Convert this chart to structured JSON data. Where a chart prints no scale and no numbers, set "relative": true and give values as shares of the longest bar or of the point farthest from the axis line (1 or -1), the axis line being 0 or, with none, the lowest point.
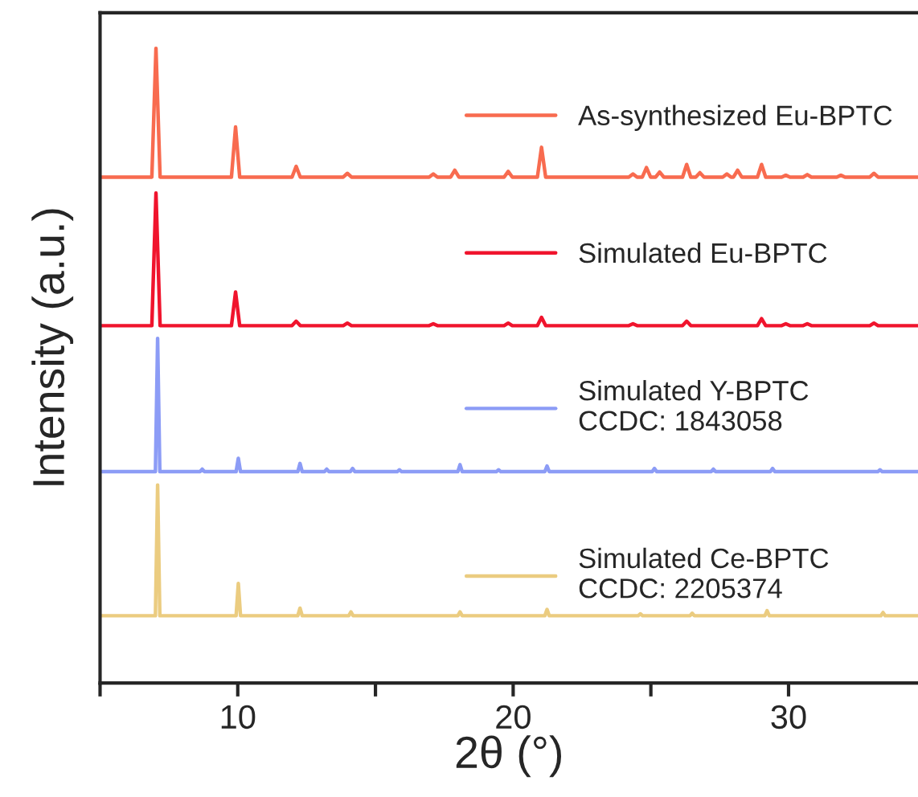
{
  "chart_data": {
    "type": "line",
    "relative": true,
    "xlabel": "2θ (°)",
    "ylabel": "Intensity (a.u.)",
    "xlim": [
      5,
      34.7
    ],
    "xticks": [
      {
        "value": 5,
        "label": null
      },
      10,
      {
        "value": 15,
        "label": null
      },
      20,
      {
        "value": 25,
        "label": null
      },
      30
    ],
    "legend": "right",
    "grid": false,
    "tick_labels": "x",
    "series": [
      {
        "name": "As-synthesized Eu-BPTC",
        "color": "#f86b4f",
        "x": [
          5,
          6.88,
          7.03,
          7.18,
          9.77,
          9.92,
          10.07,
          11.97,
          12.12,
          12.27,
          13.83,
          13.98,
          14.13,
          16.95,
          17.1,
          17.25,
          17.73,
          17.88,
          18.03,
          19.67,
          19.82,
          19.97,
          20.88,
          21.03,
          21.18,
          24.2,
          24.35,
          24.5,
          24.69,
          24.84,
          24.99,
          25.17,
          25.32,
          25.47,
          26.15,
          26.3,
          26.45,
          26.63,
          26.78,
          26.93,
          27.61,
          27.76,
          27.91,
          28.0,
          28.15,
          28.3,
          28.87,
          29.02,
          29.17,
          29.75,
          29.9,
          30.05,
          30.53,
          30.68,
          30.83,
          31.75,
          31.9,
          32.05,
          32.95,
          33.1,
          33.25,
          34.7
        ],
        "values": [
          0.797,
          0.797,
          1.0,
          0.797,
          0.797,
          0.876,
          0.797,
          0.797,
          0.814,
          0.797,
          0.797,
          0.803,
          0.797,
          0.797,
          0.802,
          0.797,
          0.797,
          0.808,
          0.797,
          0.797,
          0.806,
          0.797,
          0.797,
          0.844,
          0.797,
          0.797,
          0.802,
          0.797,
          0.797,
          0.812,
          0.797,
          0.797,
          0.805,
          0.797,
          0.797,
          0.817,
          0.797,
          0.797,
          0.804,
          0.797,
          0.797,
          0.802,
          0.797,
          0.797,
          0.808,
          0.797,
          0.797,
          0.817,
          0.797,
          0.797,
          0.8,
          0.797,
          0.797,
          0.801,
          0.797,
          0.797,
          0.8,
          0.797,
          0.797,
          0.803,
          0.797,
          0.797
        ]
      },
      {
        "name": "Simulated Eu-BPTC",
        "color": "#f0142d",
        "x": [
          5,
          6.88,
          7.03,
          7.18,
          9.77,
          9.92,
          10.07,
          11.97,
          12.12,
          12.27,
          13.83,
          13.98,
          14.13,
          16.95,
          17.1,
          17.25,
          19.67,
          19.82,
          19.97,
          20.88,
          21.03,
          21.18,
          24.2,
          24.35,
          24.5,
          26.15,
          26.3,
          26.45,
          28.87,
          29.02,
          29.17,
          29.75,
          29.9,
          30.05,
          30.53,
          30.68,
          30.83,
          32.95,
          33.1,
          33.25,
          34.7
        ],
        "values": [
          0.563,
          0.563,
          0.772,
          0.563,
          0.563,
          0.616,
          0.563,
          0.563,
          0.57,
          0.563,
          0.563,
          0.567,
          0.563,
          0.563,
          0.566,
          0.563,
          0.563,
          0.567,
          0.563,
          0.563,
          0.576,
          0.563,
          0.563,
          0.566,
          0.563,
          0.563,
          0.57,
          0.563,
          0.563,
          0.574,
          0.563,
          0.563,
          0.566,
          0.563,
          0.563,
          0.566,
          0.563,
          0.563,
          0.567,
          0.563,
          0.563
        ]
      },
      {
        "name": "Simulated Y-BPTC\nCCDC: 1843058",
        "color": "#8c9cf6",
        "x": [
          5,
          7.01,
          7.09,
          7.17,
          8.63,
          8.71,
          8.79,
          9.94,
          10.02,
          10.1,
          12.18,
          12.26,
          12.34,
          13.15,
          13.23,
          13.31,
          14.09,
          14.17,
          14.25,
          15.79,
          15.87,
          15.95,
          17.99,
          18.07,
          18.15,
          19.39,
          19.47,
          19.55,
          21.15,
          21.23,
          21.31,
          25.05,
          25.13,
          25.21,
          27.19,
          27.27,
          27.35,
          29.34,
          29.42,
          29.5,
          33.24,
          33.32,
          33.4,
          34.7
        ],
        "values": [
          0.333,
          0.333,
          0.543,
          0.333,
          0.333,
          0.337,
          0.333,
          0.333,
          0.354,
          0.333,
          0.333,
          0.346,
          0.333,
          0.333,
          0.337,
          0.333,
          0.333,
          0.338,
          0.333,
          0.333,
          0.336,
          0.333,
          0.333,
          0.344,
          0.333,
          0.333,
          0.336,
          0.333,
          0.333,
          0.342,
          0.333,
          0.333,
          0.338,
          0.333,
          0.333,
          0.337,
          0.333,
          0.333,
          0.338,
          0.333,
          0.333,
          0.336,
          0.333,
          0.333
        ]
      },
      {
        "name": "Simulated Ce-BPTC\nCCDC: 2205374",
        "color": "#ebcc80",
        "x": [
          5,
          7.01,
          7.09,
          7.17,
          9.94,
          10.02,
          10.1,
          12.18,
          12.26,
          12.34,
          14.03,
          14.11,
          14.19,
          17.99,
          18.07,
          18.15,
          21.15,
          21.23,
          21.31,
          24.54,
          24.62,
          24.7,
          26.42,
          26.5,
          26.58,
          29.14,
          29.22,
          29.3,
          33.35,
          33.43,
          33.51,
          34.7
        ],
        "values": [
          0.106,
          0.106,
          0.312,
          0.106,
          0.106,
          0.157,
          0.106,
          0.106,
          0.118,
          0.106,
          0.106,
          0.112,
          0.106,
          0.106,
          0.112,
          0.106,
          0.106,
          0.116,
          0.106,
          0.106,
          0.109,
          0.106,
          0.106,
          0.11,
          0.106,
          0.106,
          0.114,
          0.106,
          0.106,
          0.111,
          0.106,
          0.106
        ]
      }
    ]
  }
}
